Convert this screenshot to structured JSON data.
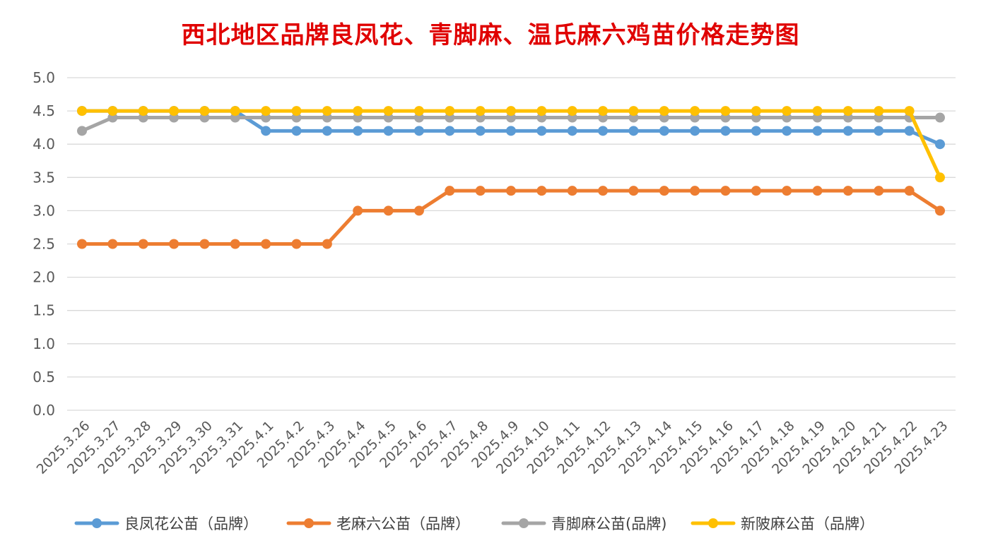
{
  "chart_data": {
    "type": "line",
    "title": "西北地区品牌良凤花、青脚麻、温氏麻六鸡苗价格走势图",
    "xlabel": "",
    "ylabel": "",
    "ylim": [
      0,
      5
    ],
    "yticks": [
      "0.0",
      "0.5",
      "1.0",
      "1.5",
      "2.0",
      "2.5",
      "3.0",
      "3.5",
      "4.0",
      "4.5",
      "5.0"
    ],
    "grid": true,
    "legend_position": "bottom",
    "categories": [
      "2025.3.26",
      "2025.3.27",
      "2025.3.28",
      "2025.3.29",
      "2025.3.30",
      "2025.3.31",
      "2025.4.1",
      "2025.4.2",
      "2025.4.3",
      "2025.4.4",
      "2025.4.5",
      "2025.4.6",
      "2025.4.7",
      "2025.4.8",
      "2025.4.9",
      "2025.4.10",
      "2025.4.11",
      "2025.4.12",
      "2025.4.13",
      "2025.4.14",
      "2025.4.15",
      "2025.4.16",
      "2025.4.17",
      "2025.4.18",
      "2025.4.19",
      "2025.4.20",
      "2025.4.21",
      "2025.4.22",
      "2025.4.23"
    ],
    "series": [
      {
        "name": "良凤花公苗（品牌）",
        "color": "#5b9bd5",
        "values": [
          4.5,
          4.5,
          4.5,
          4.5,
          4.5,
          4.5,
          4.2,
          4.2,
          4.2,
          4.2,
          4.2,
          4.2,
          4.2,
          4.2,
          4.2,
          4.2,
          4.2,
          4.2,
          4.2,
          4.2,
          4.2,
          4.2,
          4.2,
          4.2,
          4.2,
          4.2,
          4.2,
          4.2,
          4.0
        ]
      },
      {
        "name": "老麻六公苗（品牌）",
        "color": "#ed7d31",
        "values": [
          2.5,
          2.5,
          2.5,
          2.5,
          2.5,
          2.5,
          2.5,
          2.5,
          2.5,
          3.0,
          3.0,
          3.0,
          3.3,
          3.3,
          3.3,
          3.3,
          3.3,
          3.3,
          3.3,
          3.3,
          3.3,
          3.3,
          3.3,
          3.3,
          3.3,
          3.3,
          3.3,
          3.3,
          3.0
        ]
      },
      {
        "name": "青脚麻公苗(品牌)",
        "color": "#a5a5a5",
        "values": [
          4.2,
          4.4,
          4.4,
          4.4,
          4.4,
          4.4,
          4.4,
          4.4,
          4.4,
          4.4,
          4.4,
          4.4,
          4.4,
          4.4,
          4.4,
          4.4,
          4.4,
          4.4,
          4.4,
          4.4,
          4.4,
          4.4,
          4.4,
          4.4,
          4.4,
          4.4,
          4.4,
          4.4,
          4.4
        ]
      },
      {
        "name": "新陂麻公苗（品牌）",
        "color": "#ffc000",
        "values": [
          4.5,
          4.5,
          4.5,
          4.5,
          4.5,
          4.5,
          4.5,
          4.5,
          4.5,
          4.5,
          4.5,
          4.5,
          4.5,
          4.5,
          4.5,
          4.5,
          4.5,
          4.5,
          4.5,
          4.5,
          4.5,
          4.5,
          4.5,
          4.5,
          4.5,
          4.5,
          4.5,
          4.5,
          3.5
        ]
      }
    ]
  }
}
